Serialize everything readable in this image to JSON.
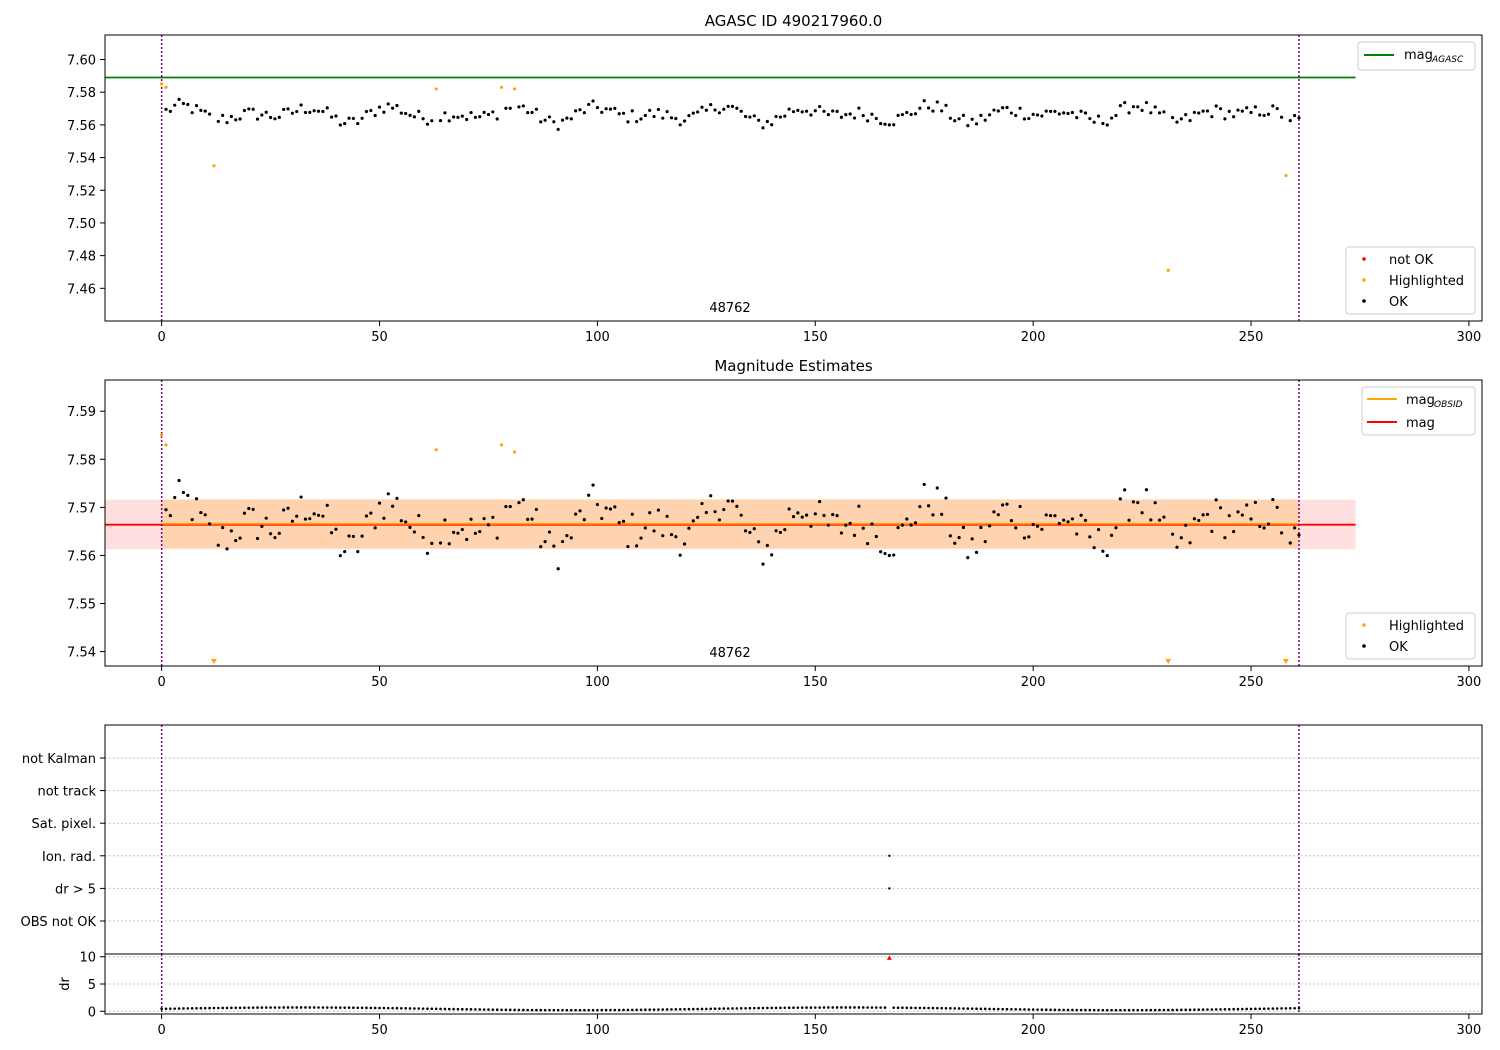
{
  "chart_data": [
    {
      "type": "scatter",
      "title": "AGASC ID 490217960.0",
      "xlim": [
        -13,
        303
      ],
      "ylim": [
        7.44,
        7.615
      ],
      "xticks": [
        "0",
        "50",
        "100",
        "150",
        "200",
        "250",
        "300"
      ],
      "yticks": [
        "7.46",
        "7.48",
        "7.50",
        "7.52",
        "7.54",
        "7.56",
        "7.58",
        "7.60"
      ],
      "obsid_label": "48762",
      "obs_boundaries": [
        0,
        261
      ],
      "hline": {
        "name": "mag",
        "sub": "AGASC",
        "value": 7.589,
        "x_end": 274,
        "color": "#008000"
      },
      "legend_lines": [
        {
          "label": "mag",
          "sub": "AGASC",
          "color": "#008000"
        }
      ],
      "legend_markers": [
        {
          "label": "not OK",
          "color": "#ff0000"
        },
        {
          "label": "Highlighted",
          "color": "#ffa500"
        },
        {
          "label": "OK",
          "color": "#000000"
        }
      ],
      "ok": {
        "x_start": 1,
        "x_end": 261,
        "base": 7.5665,
        "amplitude": 0.0055,
        "noise": 0.004,
        "exclude": [
          12,
          63,
          78,
          81,
          231,
          258
        ]
      },
      "highlighted": [
        [
          0,
          7.585
        ],
        [
          1,
          7.583
        ],
        [
          12,
          7.535
        ],
        [
          63,
          7.582
        ],
        [
          78,
          7.583
        ],
        [
          81,
          7.582
        ],
        [
          231,
          7.471
        ],
        [
          258,
          7.529
        ]
      ]
    },
    {
      "type": "scatter",
      "title": "Magnitude Estimates",
      "xlim": [
        -13,
        303
      ],
      "ylim": [
        7.537,
        7.5965
      ],
      "xticks": [
        "0",
        "50",
        "100",
        "150",
        "200",
        "250",
        "300"
      ],
      "yticks": [
        "7.54",
        "7.55",
        "7.56",
        "7.57",
        "7.58",
        "7.59"
      ],
      "obsid_label": "48762",
      "obs_boundaries": [
        0,
        261
      ],
      "mag_obsid": {
        "value": 7.5666,
        "x_end": 261,
        "band": [
          7.5615,
          7.5717
        ],
        "color": "#ffa500"
      },
      "mag": {
        "value": 7.5664,
        "x_end": 274,
        "band": [
          7.5613,
          7.5716
        ],
        "color": "#ff0000"
      },
      "legend_lines": [
        {
          "label": "mag",
          "sub": "OBSID",
          "color": "#ffa500"
        },
        {
          "label": "mag",
          "sub": "",
          "color": "#ff0000"
        }
      ],
      "legend_markers": [
        {
          "label": "Highlighted",
          "color": "#ffa500"
        },
        {
          "label": "OK",
          "color": "#000000"
        }
      ],
      "highlighted": [
        [
          0,
          7.585
        ],
        [
          1,
          7.583
        ],
        [
          63,
          7.582
        ],
        [
          78,
          7.583
        ],
        [
          81,
          7.5815
        ]
      ],
      "offscale_markers": [
        12,
        231,
        258
      ]
    },
    {
      "type": "scatter",
      "title": "",
      "xlim": [
        -13,
        303
      ],
      "xticks": [
        "0",
        "50",
        "100",
        "150",
        "200",
        "250",
        "300"
      ],
      "categories": [
        "not Kalman",
        "not track",
        "Sat. pixel.",
        "Ion. rad.",
        "dr > 5",
        "OBS not OK"
      ],
      "flag_points": [
        {
          "category": "Ion. rad.",
          "x": 167
        },
        {
          "category": "dr > 5",
          "x": 167
        }
      ],
      "obs_boundaries": [
        0,
        261
      ]
    },
    {
      "type": "scatter",
      "ylabel": "dr",
      "xlim": [
        -13,
        303
      ],
      "ylim": [
        -0.5,
        10.5
      ],
      "yticks": [
        "0",
        "5",
        "10"
      ],
      "xticks": [
        "0",
        "50",
        "100",
        "150",
        "200",
        "250",
        "300"
      ],
      "dr": {
        "x_start": 0,
        "x_end": 261,
        "base": 0.45,
        "amplitude": 0.25
      },
      "outlier": {
        "x": 167,
        "y": 9.8,
        "color": "#ff0000"
      },
      "obs_boundaries": [
        0,
        261
      ]
    }
  ]
}
